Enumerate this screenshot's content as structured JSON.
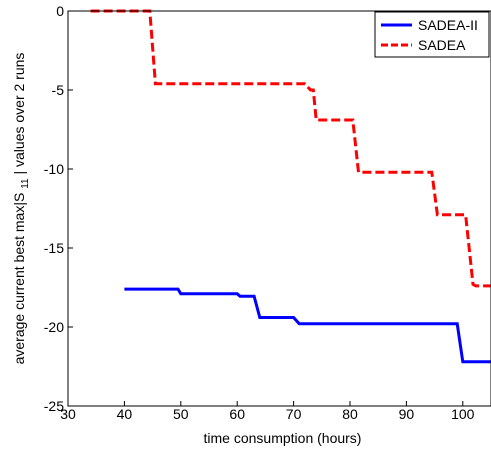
{
  "chart_data": {
    "type": "line",
    "title": "",
    "xlabel": "time consumption (hours)",
    "ylabel_parts": [
      "average current best max|S",
      "11",
      "| values over 2 runs"
    ],
    "xlim": [
      30,
      105
    ],
    "ylim": [
      -25,
      0
    ],
    "xticks": [
      30,
      40,
      50,
      60,
      70,
      80,
      90,
      100
    ],
    "yticks": [
      0,
      -5,
      -10,
      -15,
      -20,
      -25
    ],
    "grid": false,
    "legend_position": "top-right",
    "series": [
      {
        "name": "SADEA-II",
        "color": "#0000ff",
        "style": "solid",
        "x": [
          40,
          49.5,
          50,
          60,
          60.5,
          63,
          64,
          70,
          71,
          99,
          100,
          105
        ],
        "y": [
          -17.6,
          -17.6,
          -17.9,
          -17.9,
          -18.05,
          -18.05,
          -19.4,
          -19.4,
          -19.8,
          -19.8,
          -22.2,
          -22.2
        ]
      },
      {
        "name": "SADEA",
        "color": "#ff0000",
        "style": "dashed",
        "x": [
          34,
          44.5,
          45.5,
          72,
          73,
          73.5,
          74,
          80.5,
          81.5,
          94.5,
          95.5,
          100.5,
          101.8,
          102.3,
          105
        ],
        "y": [
          0,
          0,
          -4.6,
          -4.6,
          -5,
          -5,
          -6.9,
          -6.9,
          -10.2,
          -10.2,
          -12.9,
          -12.9,
          -17.3,
          -17.4,
          -17.4
        ]
      }
    ]
  }
}
